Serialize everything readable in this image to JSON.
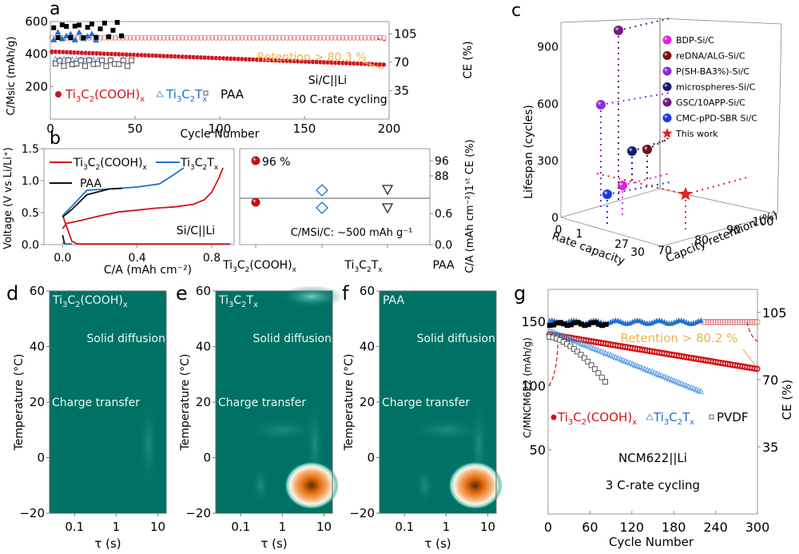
{
  "chart_data": [
    {
      "panel": "a",
      "type": "scatter",
      "title": "",
      "xlabel": "Cycle Number",
      "ylabel": "C/MSiC (mAh/g)",
      "y2label": "CE (%)",
      "xlim": [
        0,
        200
      ],
      "ylim": [
        0,
        600
      ],
      "y2lim": [
        0,
        120
      ],
      "xticks": [
        0,
        50,
        100,
        150,
        200
      ],
      "yticks": [
        200,
        400,
        600
      ],
      "y2ticks": [
        35,
        70,
        105
      ],
      "legend": [
        "Ti3C2(COOH)x",
        "Ti3C2Tx",
        "PAA"
      ],
      "legend_placement": "bottom-left",
      "annotations": [
        "Retention > 80.3 %",
        "Si/C||Li",
        "30 C-rate cycling"
      ],
      "series": [
        {
          "name": "Ti3C2(COOH)x capacity",
          "color": "#d0141a",
          "x_range": [
            1,
            197
          ],
          "start": 415,
          "end": 335
        },
        {
          "name": "Ti3C2(COOH)x CE",
          "color": "#e57b80",
          "x_range": [
            1,
            197
          ],
          "ce": 100
        },
        {
          "name": "Ti3C2Tx capacity",
          "color": "#3f8fe0",
          "x_range": [
            3,
            28
          ],
          "start": 370,
          "end": 365
        },
        {
          "name": "Ti3C2Tx CE",
          "color": "#1e6fd0",
          "x_range": [
            2,
            28
          ],
          "ce": 102
        },
        {
          "name": "PAA capacity",
          "color": "#222222",
          "x_range": [
            3,
            50
          ],
          "start": 360,
          "end": 360
        },
        {
          "name": "PAA CE",
          "color": "#000000",
          "x_range": [
            2,
            44
          ],
          "ce": 105
        }
      ]
    },
    {
      "panel": "b-left",
      "type": "line",
      "xlabel": "C/A (mAh cm⁻²)",
      "ylabel": "Voltage (V vs Li/Li⁺)",
      "xlim": [
        -0.1,
        0.92
      ],
      "ylim": [
        0,
        1.5
      ],
      "xticks": [
        0.0,
        0.4,
        0.8
      ],
      "yticks": [
        0.0,
        0.5,
        1.0,
        1.5
      ],
      "legend": [
        "Ti3C2(COOH)x",
        "Ti3C2Tx",
        "PAA"
      ],
      "annotation": "Si/C||Li",
      "series": [
        {
          "name": "Ti3C2(COOH)x",
          "color": "#d0141a",
          "x": [
            0,
            0.02,
            0.1,
            0.2,
            0.3,
            0.4,
            0.5,
            0.6,
            0.7,
            0.76,
            0.8,
            0.84,
            0.86
          ],
          "y": [
            0.25,
            0.33,
            0.38,
            0.45,
            0.51,
            0.54,
            0.57,
            0.59,
            0.63,
            0.7,
            0.82,
            1.05,
            1.2
          ]
        },
        {
          "name": "Ti3C2(COOH)x discharge",
          "color": "#d0141a",
          "x": [
            0,
            0.05,
            0.08,
            0.9
          ],
          "y": [
            0.46,
            0.05,
            0.01,
            0.01
          ]
        },
        {
          "name": "Ti3C2Tx",
          "color": "#1e6fd0",
          "x": [
            0,
            0.05,
            0.13,
            0.25,
            0.4,
            0.52,
            0.6,
            0.65
          ],
          "y": [
            0.45,
            0.6,
            0.85,
            0.87,
            0.9,
            0.95,
            1.1,
            1.2
          ]
        },
        {
          "name": "Ti3C2Tx discharge",
          "color": "#1e6fd0",
          "x": [
            0,
            0.02,
            0.05
          ],
          "y": [
            0.03,
            0.01,
            0.01
          ]
        },
        {
          "name": "PAA",
          "color": "#111111",
          "x": [
            0,
            0.05,
            0.13,
            0.25,
            0.32
          ],
          "y": [
            0.43,
            0.55,
            0.78,
            0.87,
            0.88
          ]
        },
        {
          "name": "PAA discharge",
          "color": "#111111",
          "x": [
            0,
            0.01
          ],
          "y": [
            0.15,
            0.02
          ]
        }
      ]
    },
    {
      "panel": "b-right",
      "type": "scatter",
      "categories": [
        "Ti3C2(COOH)x",
        "Ti3C2Tx",
        "PAA"
      ],
      "y2label": "C/A (mAh cm⁻²)1st CE (%)",
      "y2ticks": [
        "0.0",
        "0.6",
        "88",
        "96"
      ],
      "annotations": [
        "96 %",
        "C/MSi/C: ~500 mAh g⁻¹"
      ],
      "first_ce": [
        96,
        85,
        84
      ],
      "capacity": [
        0.72,
        0.65,
        0.66
      ]
    },
    {
      "panel": "c",
      "type": "scatter",
      "title": "",
      "xlabel": "Rate capacity",
      "ylabel": "Lifespan (cycles)",
      "zlabel": "Capcity retention (%)",
      "xticks": [
        "0",
        "1",
        "27",
        "30"
      ],
      "yticks": [
        0,
        300,
        600,
        900
      ],
      "zticks": [
        70,
        80,
        90,
        100
      ],
      "series": [
        {
          "name": "BDP-Si/C",
          "color": "#e21fe0",
          "lifespan": 170
        },
        {
          "name": "reDNA/ALG-Si/C",
          "color": "#7a1010",
          "lifespan": 370
        },
        {
          "name": "P(SH-BA3%)-Si/C",
          "color": "#8a2be2",
          "lifespan": 610
        },
        {
          "name": "microspheres-Si/C",
          "color": "#141a6e",
          "lifespan": 350
        },
        {
          "name": "GSC/10APP-Si/C",
          "color": "#6e1a7e",
          "lifespan": 1000
        },
        {
          "name": "CMC-pPD-SBR Si/C",
          "color": "#1a3ae0",
          "lifespan": 130
        },
        {
          "name": "This work",
          "color": "#ee1c1c",
          "lifespan": 120,
          "marker": "star"
        }
      ]
    },
    {
      "panel": "d",
      "type": "heatmap",
      "label": "Ti3C2(COOH)x",
      "xlabel": "τ (s)",
      "ylabel": "Temperature (°C)",
      "xticks": [
        "0.1",
        "1",
        "10"
      ],
      "yticks": [
        -20,
        0,
        20,
        40,
        60
      ],
      "annotations": [
        "Solid diffusion",
        "Charge transfer"
      ],
      "hotspots": []
    },
    {
      "panel": "e",
      "type": "heatmap",
      "label": "Ti3C2Tx",
      "xlabel": "τ (s)",
      "ylabel": "Temperature (°C)",
      "xticks": [
        "0.1",
        "1",
        "10"
      ],
      "yticks": [
        -20,
        0,
        20,
        40,
        60
      ],
      "annotations": [
        "Solid diffusion",
        "Charge transfer"
      ],
      "hotspots": [
        {
          "tau": 5,
          "temp": -10,
          "intensity": "high"
        },
        {
          "tau": 5,
          "temp": 58,
          "intensity": "low"
        }
      ]
    },
    {
      "panel": "f",
      "type": "heatmap",
      "label": "PAA",
      "xlabel": "τ (s)",
      "ylabel": "Temperature (°C)",
      "xticks": [
        "0.1",
        "1",
        "10"
      ],
      "yticks": [
        -20,
        0,
        20,
        40,
        60
      ],
      "annotations": [
        "Solid diffusion",
        "Charge transfer"
      ],
      "hotspots": [
        {
          "tau": 5,
          "temp": -10,
          "intensity": "high"
        }
      ]
    },
    {
      "panel": "g",
      "type": "scatter",
      "xlabel": "Cycle Number",
      "ylabel": "C/MNCM622 (mAh/g)",
      "y2label": "CE (%)",
      "xlim": [
        0,
        300
      ],
      "ylim": [
        0,
        175
      ],
      "y2lim": [
        0,
        117
      ],
      "xticks": [
        0,
        60,
        120,
        180,
        240,
        300
      ],
      "yticks": [
        50,
        100,
        150
      ],
      "y2ticks": [
        35,
        70,
        105
      ],
      "legend": [
        "Ti3C2(COOH)x",
        "Ti3C2Tx",
        "PVDF"
      ],
      "annotations": [
        "Retention > 80.2 %",
        "NCM622||Li",
        "3 C-rate cycling"
      ],
      "series": [
        {
          "name": "Ti3C2(COOH)x capacity",
          "color": "#d0141a",
          "x_range": [
            2,
            300
          ],
          "start": 140,
          "end": 113
        },
        {
          "name": "Ti3C2Tx capacity",
          "color": "#3f8fe0",
          "x_range": [
            2,
            222
          ],
          "start": 143,
          "end": 95
        },
        {
          "name": "PVDF capacity",
          "color": "#333333",
          "x_range": [
            2,
            82
          ],
          "start": 138,
          "end": 103
        },
        {
          "name": "Ti3C2(COOH)x CE",
          "color": "#e57b80",
          "x_range": [
            2,
            300
          ],
          "ce": 100
        },
        {
          "name": "Ti3C2Tx CE",
          "color": "#1e6fd0",
          "x_range": [
            2,
            222
          ],
          "ce": 100
        },
        {
          "name": "PVDF CE",
          "color": "#000000",
          "x_range": [
            2,
            82
          ],
          "ce": 99
        }
      ]
    }
  ],
  "panel_labels": [
    "a",
    "b",
    "c",
    "d",
    "e",
    "f",
    "g"
  ],
  "text": {
    "a_ylabel": "C/Msic (mAh/g)",
    "a_xlabel": "Cycle Number",
    "a_y2label": "CE (%)",
    "a_retention": "Retention > 80.3 %",
    "a_cell": "Si/C||Li",
    "a_rate": "30 C-rate cycling",
    "a_leg1": "Ti3C2(COOH)x",
    "a_leg2": "Ti3C2Tx",
    "a_leg3": "PAA",
    "b_ylabel": "Voltage (V vs Li/Li⁺)",
    "b_xlabel": "C/A (mAh cm⁻²)",
    "b_cell": "Si/C||Li",
    "b_leg3": "PAA",
    "b_ce": "96 %",
    "b_cap": "C/MSi/C: ~500 mAh g⁻¹",
    "b_y2label": "C/A (mAh cm⁻²)1ˢᵗ CE (%)",
    "b_cat3": "PAA",
    "c_ylabel": "Lifespan (cycles)",
    "c_xlabel": "Rate capacity",
    "c_zlabel": "Capcity retention (%)",
    "heat_ylabel": "Temperature (°C)",
    "heat_xlabel": "τ (s)",
    "solid": "Solid  diffusion",
    "charge": "Charge transfer",
    "f_label": "PAA",
    "g_ylabel": "C/MNCM622 (mAh/g)",
    "g_xlabel": "Cycle Number",
    "g_y2label": "CE (%)",
    "g_retention": "Retention > 80.2 %",
    "g_cell": "NCM622||Li",
    "g_rate": "3 C-rate cycling",
    "g_leg3": "PVDF"
  }
}
